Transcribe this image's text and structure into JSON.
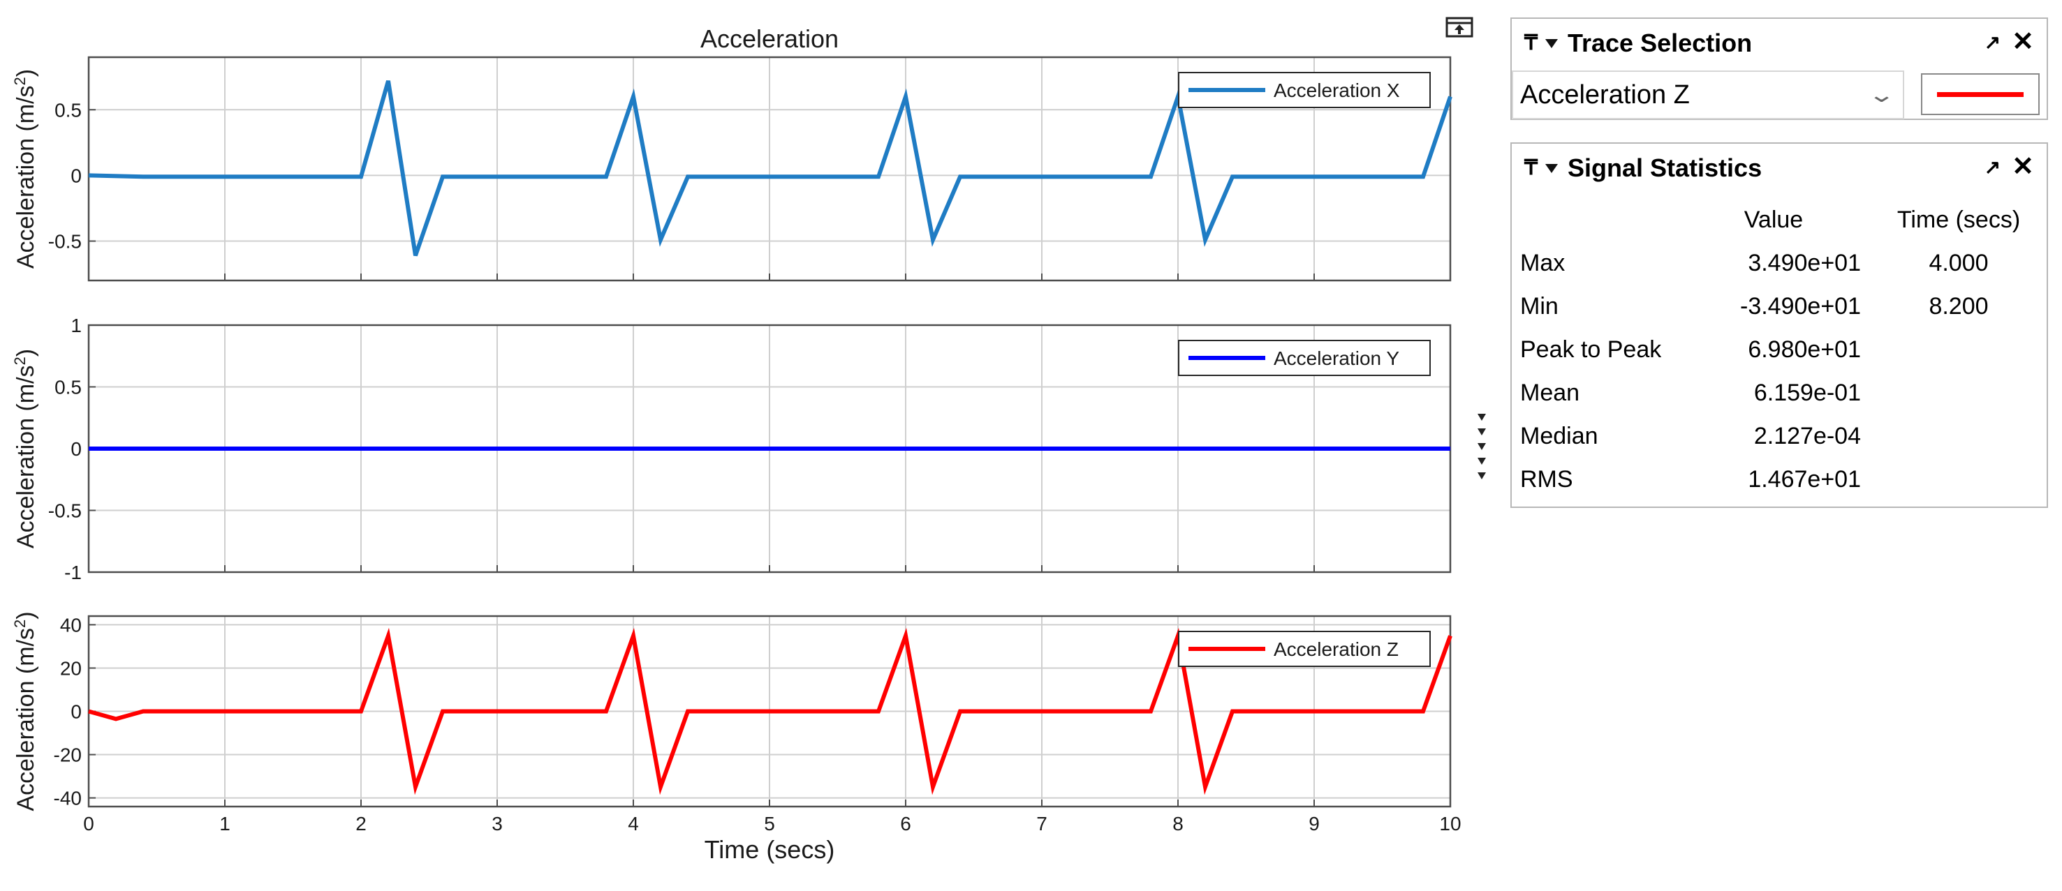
{
  "chart_data": [
    {
      "type": "line",
      "title": "Acceleration",
      "xlabel": "",
      "ylabel": "Acceleration (m/s²)",
      "xlim": [
        0,
        10
      ],
      "ylim": [
        -0.8,
        0.9
      ],
      "xticks": [
        "0",
        "1",
        "2",
        "3",
        "4",
        "5",
        "6",
        "7",
        "8",
        "9",
        "10"
      ],
      "yticks": [
        {
          "v": -0.5,
          "t": "-0.5"
        },
        {
          "v": 0,
          "t": "0"
        },
        {
          "v": 0.5,
          "t": "0.5"
        }
      ],
      "grid": true,
      "legend_position": "top-right",
      "series": [
        {
          "name": "Acceleration X",
          "color": "#1f7cc4",
          "x": [
            0,
            0.4,
            2.0,
            2.2,
            2.4,
            2.6,
            3.8,
            4.0,
            4.2,
            4.4,
            5.8,
            6.0,
            6.2,
            6.4,
            7.8,
            8.0,
            8.2,
            8.4,
            9.8,
            10.0
          ],
          "y": [
            0,
            -0.01,
            -0.01,
            0.72,
            -0.61,
            -0.01,
            -0.01,
            0.6,
            -0.49,
            -0.01,
            -0.01,
            0.6,
            -0.49,
            -0.01,
            -0.01,
            0.6,
            -0.49,
            -0.01,
            -0.01,
            0.6
          ]
        }
      ]
    },
    {
      "type": "line",
      "title": "",
      "xlabel": "",
      "ylabel": "Acceleration (m/s²)",
      "xlim": [
        0,
        10
      ],
      "ylim": [
        -1,
        1
      ],
      "xticks": [
        "0",
        "1",
        "2",
        "3",
        "4",
        "5",
        "6",
        "7",
        "8",
        "9",
        "10"
      ],
      "yticks": [
        {
          "v": -1,
          "t": "-1"
        },
        {
          "v": -0.5,
          "t": "-0.5"
        },
        {
          "v": 0,
          "t": "0"
        },
        {
          "v": 0.5,
          "t": "0.5"
        },
        {
          "v": 1,
          "t": "1"
        }
      ],
      "grid": true,
      "legend_position": "top-right",
      "series": [
        {
          "name": "Acceleration Y",
          "color": "#0000ff",
          "x": [
            0,
            10
          ],
          "y": [
            0,
            0
          ]
        }
      ]
    },
    {
      "type": "line",
      "title": "",
      "xlabel": "Time (secs)",
      "ylabel": "Acceleration (m/s²)",
      "xlim": [
        0,
        10
      ],
      "ylim": [
        -44,
        44
      ],
      "xticks": [
        "0",
        "1",
        "2",
        "3",
        "4",
        "5",
        "6",
        "7",
        "8",
        "9",
        "10"
      ],
      "yticks": [
        {
          "v": -40,
          "t": "-40"
        },
        {
          "v": -20,
          "t": "-20"
        },
        {
          "v": 0,
          "t": "0"
        },
        {
          "v": 20,
          "t": "20"
        },
        {
          "v": 40,
          "t": "40"
        }
      ],
      "grid": true,
      "legend_position": "top-right",
      "series": [
        {
          "name": "Acceleration Z",
          "color": "#ff0000",
          "x": [
            0,
            0.2,
            0.4,
            2.0,
            2.2,
            2.4,
            2.6,
            3.8,
            4.0,
            4.2,
            4.4,
            5.8,
            6.0,
            6.2,
            6.4,
            7.8,
            8.0,
            8.2,
            8.4,
            9.8,
            10.0
          ],
          "y": [
            0,
            -3.5,
            0,
            0,
            34.9,
            -34.9,
            0,
            0,
            34.9,
            -34.9,
            0,
            0,
            34.9,
            -34.9,
            0,
            0,
            34.9,
            -34.9,
            0,
            0,
            34.9
          ]
        }
      ]
    }
  ],
  "trace_selection": {
    "title": "Trace Selection",
    "selected": "Acceleration Z",
    "line_color": "#ff0000"
  },
  "signal_statistics": {
    "title": "Signal Statistics",
    "headers": [
      "",
      "Value",
      "Time (secs)"
    ],
    "rows": [
      {
        "label": "Max",
        "value": "3.490e+01",
        "time": "4.000"
      },
      {
        "label": "Min",
        "value": "-3.490e+01",
        "time": "8.200"
      },
      {
        "label": "Peak to Peak",
        "value": "6.980e+01",
        "time": ""
      },
      {
        "label": "Mean",
        "value": "6.159e-01",
        "time": ""
      },
      {
        "label": "Median",
        "value": "2.127e-04",
        "time": ""
      },
      {
        "label": "RMS",
        "value": "1.467e+01",
        "time": ""
      }
    ]
  },
  "icons": {
    "panel_pin": "pin-icon",
    "panel_collapse": "collapse-triangle-icon",
    "panel_maximize": "maximize-icon",
    "panel_close": "close-icon",
    "undock": "undock-icon"
  }
}
